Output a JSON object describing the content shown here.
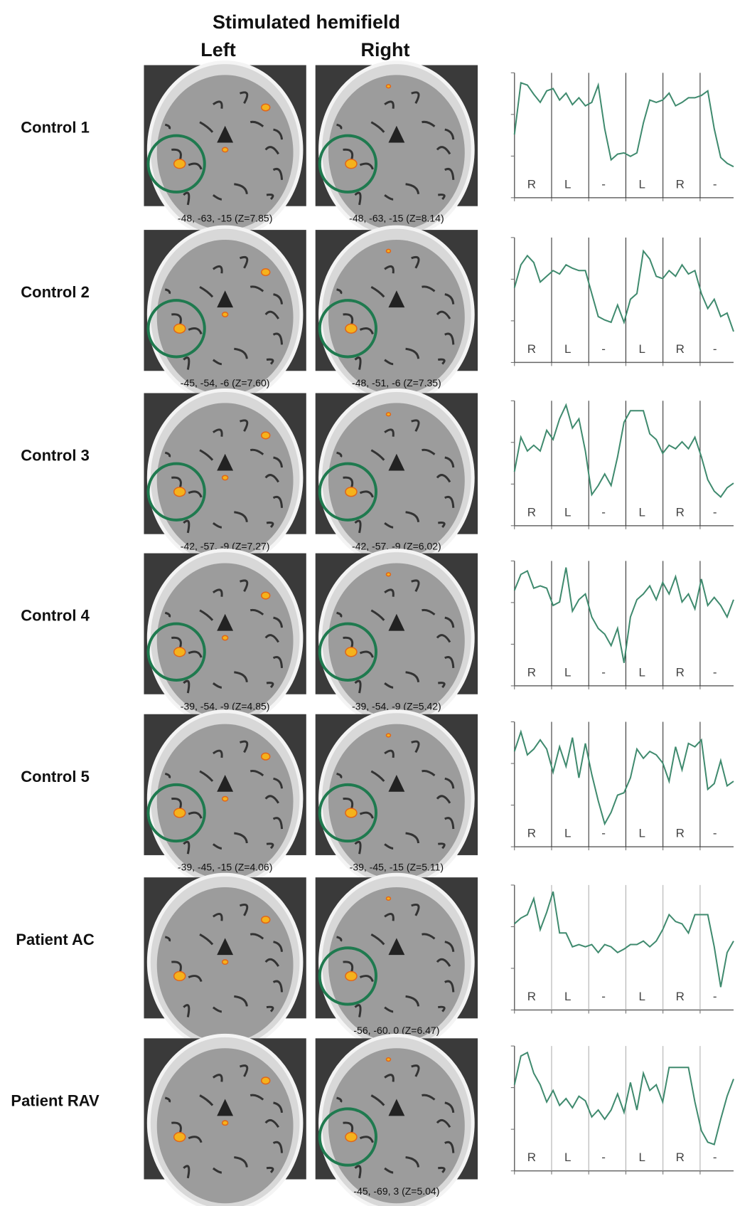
{
  "title": "Stimulated hemifield",
  "columns": [
    "Left",
    "Right"
  ],
  "segments": [
    "R",
    "L",
    "-",
    "L",
    "R",
    "-"
  ],
  "rows": [
    {
      "label": "Control 1",
      "left_caption": "-48, -63, -15 (Z=7.85)",
      "right_caption": "-48, -63, -15 (Z=8.14)",
      "trace": [
        50,
        95,
        93,
        85,
        78,
        88,
        90,
        80,
        86,
        76,
        82,
        75,
        78,
        93,
        55,
        28,
        33,
        34,
        31,
        34,
        60,
        80,
        78,
        80,
        86,
        75,
        78,
        82,
        82,
        84,
        88,
        55,
        30,
        25,
        22
      ]
    },
    {
      "label": "Control 2",
      "left_caption": "-45, -54, -6 (Z=7.60)",
      "right_caption": "-48, -51, -6 (Z=7.35)",
      "trace": [
        60,
        80,
        88,
        82,
        65,
        70,
        75,
        72,
        80,
        77,
        75,
        75,
        55,
        35,
        32,
        30,
        45,
        30,
        50,
        55,
        92,
        85,
        70,
        68,
        75,
        70,
        80,
        72,
        75,
        55,
        42,
        50,
        35,
        38,
        22
      ]
    },
    {
      "label": "Control 3",
      "left_caption": "-42, -57, -9 (Z=7.27)",
      "right_caption": "-42, -57, -9 (Z=6.02)",
      "trace": [
        42,
        72,
        60,
        65,
        60,
        78,
        70,
        88,
        100,
        80,
        88,
        60,
        22,
        30,
        40,
        30,
        55,
        85,
        95,
        95,
        95,
        75,
        70,
        58,
        65,
        62,
        68,
        62,
        72,
        55,
        35,
        25,
        20,
        28,
        32
      ]
    },
    {
      "label": "Control 4",
      "left_caption": "-39, -54, -9 (Z=4.85)",
      "right_caption": "-39, -54, -9 (Z=5.42)",
      "trace": [
        78,
        92,
        95,
        80,
        82,
        80,
        65,
        68,
        98,
        60,
        70,
        75,
        55,
        45,
        40,
        30,
        45,
        15,
        55,
        70,
        75,
        82,
        70,
        85,
        75,
        90,
        68,
        75,
        62,
        88,
        65,
        72,
        65,
        55,
        70
      ]
    },
    {
      "label": "Control 5",
      "left_caption": "-39, -45, -15 (Z=4.06)",
      "right_caption": "-39, -45, -15 (Z=5.11)",
      "trace": [
        78,
        95,
        75,
        80,
        88,
        80,
        60,
        82,
        65,
        90,
        55,
        85,
        58,
        35,
        15,
        25,
        40,
        42,
        55,
        80,
        72,
        78,
        75,
        68,
        52,
        82,
        62,
        85,
        82,
        88,
        45,
        50,
        70,
        48,
        52
      ]
    },
    {
      "label": "Patient AC",
      "right_caption": "-56, -60, 0 (Z=6.47)",
      "trace": [
        70,
        75,
        78,
        92,
        65,
        80,
        98,
        62,
        62,
        50,
        52,
        50,
        52,
        45,
        52,
        50,
        45,
        48,
        52,
        52,
        55,
        50,
        55,
        65,
        78,
        72,
        70,
        62,
        78,
        78,
        78,
        50,
        15,
        45,
        55
      ]
    },
    {
      "label": "Patient RAV",
      "right_caption": "-45, -69, 3 (Z=5.04)",
      "trace": [
        70,
        95,
        98,
        80,
        70,
        55,
        65,
        52,
        58,
        50,
        60,
        56,
        42,
        48,
        40,
        48,
        62,
        46,
        72,
        48,
        80,
        65,
        70,
        55,
        85,
        85,
        85,
        85,
        55,
        30,
        20,
        18,
        40,
        60,
        75
      ]
    }
  ]
}
